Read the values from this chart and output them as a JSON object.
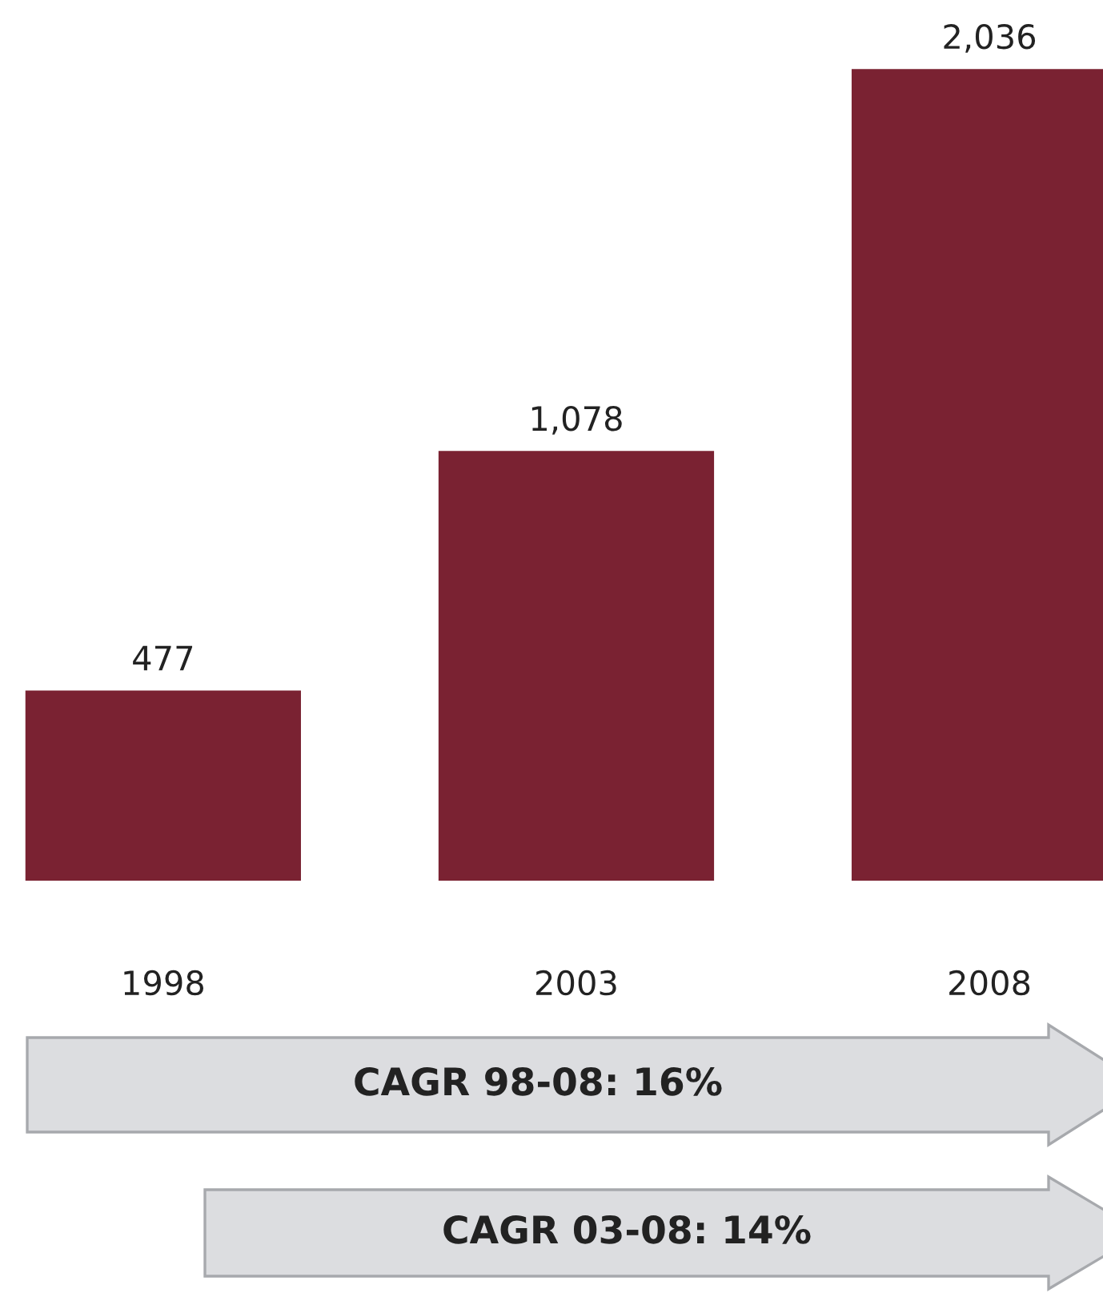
{
  "chart_data": {
    "type": "bar",
    "categories": [
      "1998",
      "2003",
      "2008"
    ],
    "values": [
      477,
      1078,
      2036
    ],
    "value_labels": [
      "477",
      "1,078",
      "2,036"
    ],
    "color": "#7a2232",
    "grid": false,
    "legend": false,
    "tick_labels": "x",
    "annotations": [
      "CAGR 98-08: 16%",
      "CAGR 03-08: 14%"
    ]
  }
}
